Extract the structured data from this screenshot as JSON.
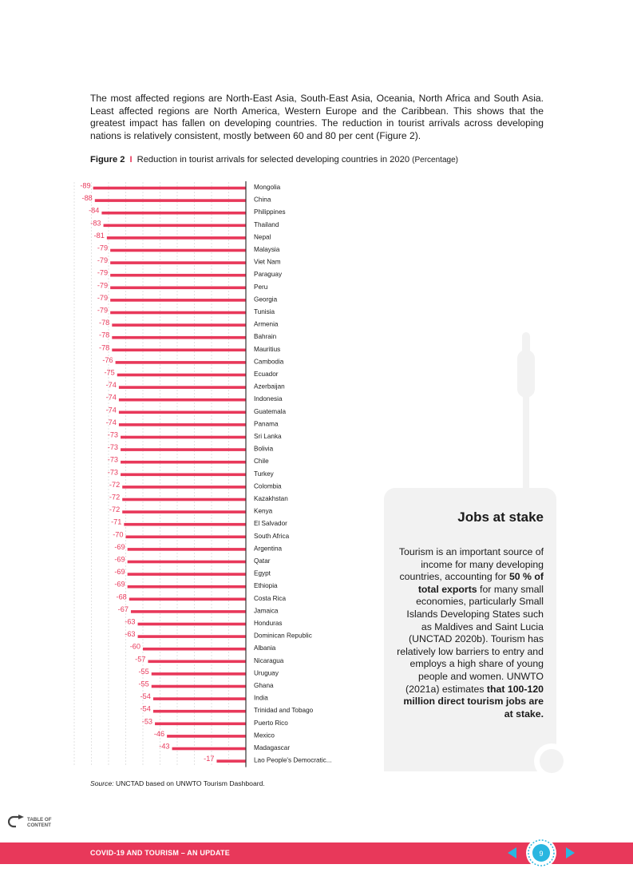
{
  "intro_text": "The most affected regions are North-East Asia, South-East Asia, Oceania, North Africa and South Asia. Least affected regions are North America, Western Europe and the Caribbean. This shows that the greatest impact has fallen on developing countries. The reduction in tourist arrivals across developing nations is relatively consistent, mostly between 60 and 80 per cent (Figure 2).",
  "figure": {
    "number": "Figure 2",
    "separator": "I",
    "title": "Reduction in tourist arrivals for selected developing countries in 2020",
    "unit": "(Percentage)"
  },
  "chart_data": {
    "type": "bar",
    "orientation": "horizontal",
    "title": "Reduction in tourist arrivals for selected developing countries in 2020 (Percentage)",
    "categories": [
      "Mongolia",
      "China",
      "Philippines",
      "Thailand",
      "Nepal",
      "Malaysia",
      "Viet Nam",
      "Paraguay",
      "Peru",
      "Georgia",
      "Tunisia",
      "Armenia",
      "Bahrain",
      "Mauritius",
      "Cambodia",
      "Ecuador",
      "Azerbaijan",
      "Indonesia",
      "Guatemala",
      "Panama",
      "Sri Lanka",
      "Bolivia",
      "Chile",
      "Turkey",
      "Colombia",
      "Kazakhstan",
      "Kenya",
      "El Salvador",
      "South Africa",
      "Argentina",
      "Qatar",
      "Egypt",
      "Ethiopia",
      "Costa Rica",
      "Jamaica",
      "Honduras",
      "Dominican Republic",
      "Albania",
      "Nicaragua",
      "Uruguay",
      "Ghana",
      "India",
      "Trinidad and Tobago",
      "Puerto Rico",
      "Mexico",
      "Madagascar",
      "Lao People's Democratic..."
    ],
    "values": [
      -89,
      -88,
      -84,
      -83,
      -81,
      -79,
      -79,
      -79,
      -79,
      -79,
      -79,
      -78,
      -78,
      -78,
      -76,
      -75,
      -74,
      -74,
      -74,
      -74,
      -73,
      -73,
      -73,
      -73,
      -72,
      -72,
      -72,
      -71,
      -70,
      -69,
      -69,
      -69,
      -69,
      -68,
      -67,
      -63,
      -63,
      -60,
      -57,
      -55,
      -55,
      -54,
      -54,
      -53,
      -46,
      -43,
      -17
    ],
    "xlim": [
      -100,
      0
    ],
    "grid": true,
    "bar_color": "#e8385a"
  },
  "source": {
    "label": "Source:",
    "text": " UNCTAD based on  UNWTO Tourism Dashboard."
  },
  "jobs_box": {
    "title": "Jobs at stake",
    "p1": "Tourism is an important source of income for many developing countries, accounting for",
    "b1": "50 % of total exports",
    "p2": "for many small economies, particularly Small Islands Developing States such as Maldives  and Saint Lucia (UNCTAD 2020b). Tourism has relatively low barriers to entry and employs a high share of young people and women. UNWTO (2021a) estimates",
    "b2": "that 100-120 million direct tourism jobs are at stake."
  },
  "toc_label_1": "TABLE OF",
  "toc_label_2": "CONTENT",
  "footer_title": "COVID-19 AND TOURISM – AN UPDATE",
  "page_number": "9",
  "colors": {
    "accent": "#e8385a",
    "page_badge": "#29b6e0",
    "box_bg": "#f2f2f2"
  }
}
